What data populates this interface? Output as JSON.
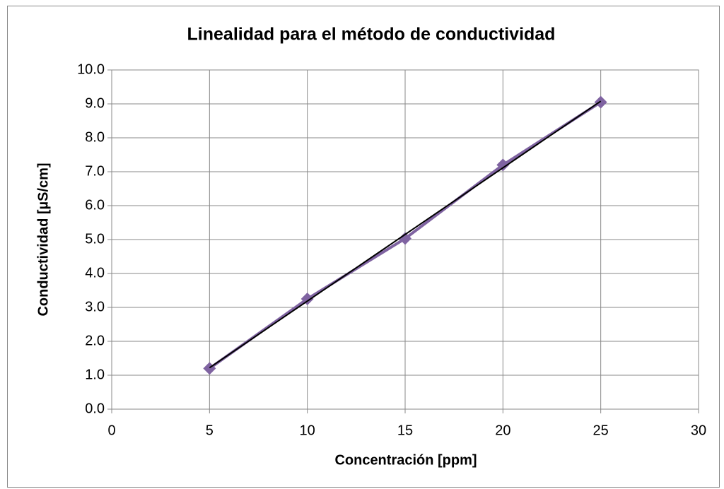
{
  "chart_data": {
    "type": "line",
    "title": "Linealidad para el método de conductividad",
    "x_label": "Concentración [ppm]",
    "y_label": "Conductividad [µS/cm]",
    "x": [
      5,
      10,
      15,
      20,
      25
    ],
    "series": [
      {
        "color": "#7f63a1",
        "values": [
          1.2,
          3.25,
          5.03,
          7.2,
          9.05
        ]
      }
    ],
    "trendline": {
      "color": "#000000",
      "x": [
        5,
        25
      ],
      "values": [
        1.22,
        9.08
      ]
    },
    "xlim": [
      0,
      30
    ],
    "xticks": [
      0,
      5,
      10,
      15,
      20,
      25,
      30
    ],
    "ylim": [
      0,
      10
    ],
    "yticks": [
      {
        "value": 0,
        "label": "0.0"
      },
      {
        "value": 1,
        "label": "1.0"
      },
      {
        "value": 2,
        "label": "2.0"
      },
      {
        "value": 3,
        "label": "3.0"
      },
      {
        "value": 4,
        "label": "4.0"
      },
      {
        "value": 5,
        "label": "5.0"
      },
      {
        "value": 6,
        "label": "6.0"
      },
      {
        "value": 7,
        "label": "7.0"
      },
      {
        "value": 8,
        "label": "8.0"
      },
      {
        "value": 9,
        "label": "9.0"
      },
      {
        "value": 10,
        "label": "10.0"
      }
    ],
    "grid": true
  }
}
